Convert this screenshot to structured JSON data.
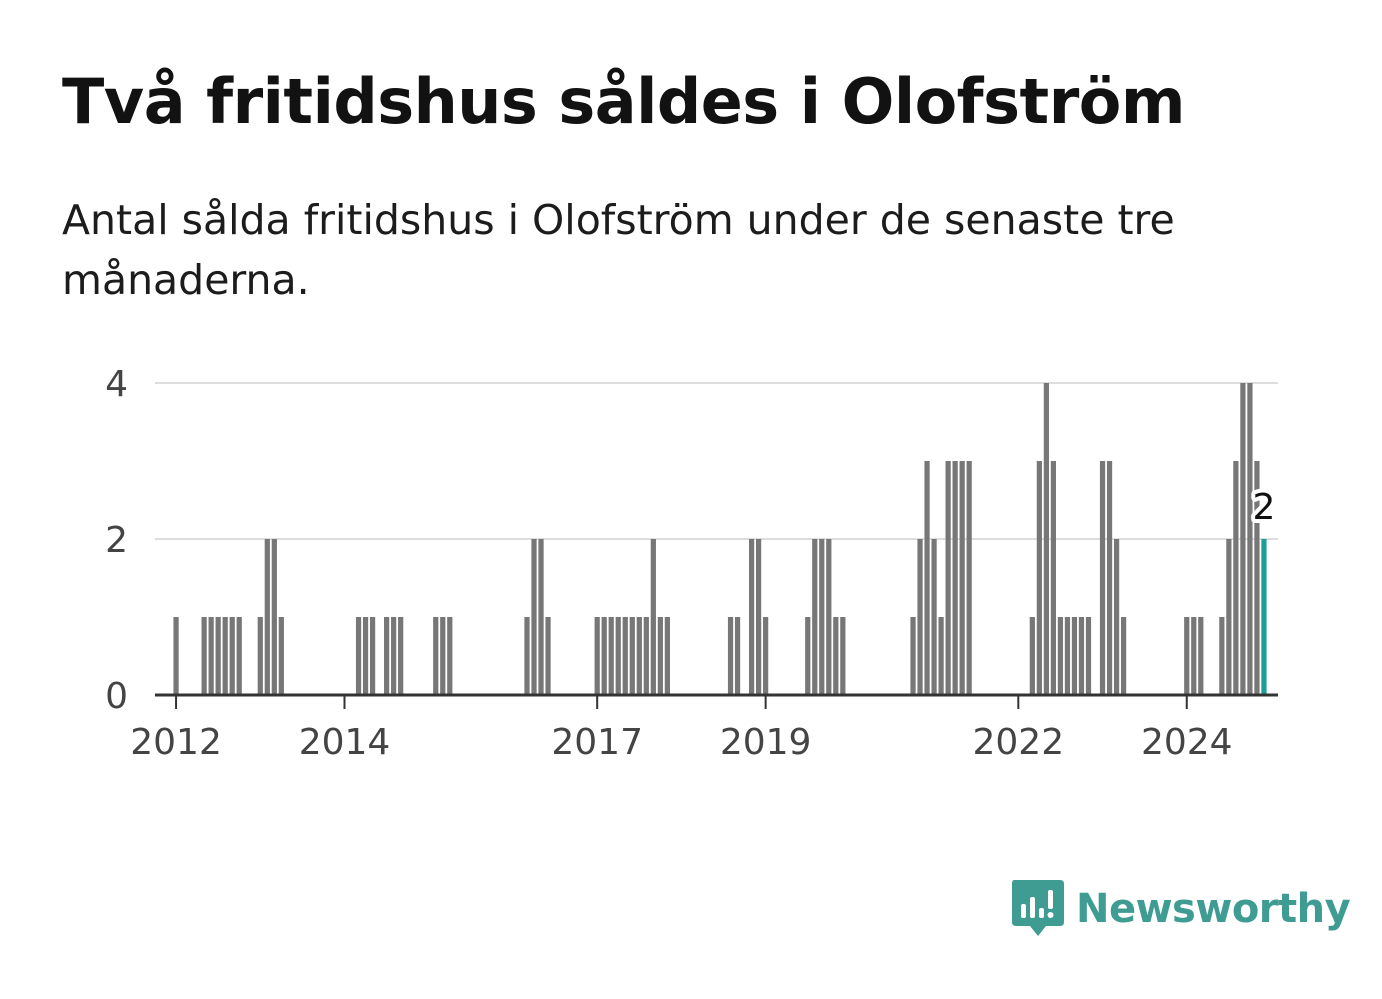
{
  "title": "Två fritidshus såldes i Olofström",
  "subtitle": "Antal sålda fritidshus i Olofström under de senaste tre månaderna.",
  "logo": {
    "text": "Newsworthy",
    "icon": "bar-chart-icon"
  },
  "colors": {
    "bar": "#777777",
    "highlight": "#1a9e97",
    "grid": "#dddddd",
    "axis": "#333333",
    "brand": "#3f9c93"
  },
  "chart_data": {
    "type": "bar",
    "title": "",
    "xlabel": "",
    "ylabel": "",
    "ylim": [
      0,
      4
    ],
    "yticks": [
      0,
      2,
      4
    ],
    "xticks": [
      "2012",
      "2014",
      "2017",
      "2019",
      "2022",
      "2024"
    ],
    "grid": true,
    "x_start": "2011-10",
    "x_end": "2025-02",
    "categories": [
      "2012-01",
      "2012-05",
      "2012-06",
      "2012-07",
      "2012-08",
      "2012-09",
      "2012-10",
      "2013-01",
      "2013-02",
      "2013-03",
      "2013-04",
      "2014-03",
      "2014-04",
      "2014-05",
      "2014-07",
      "2014-08",
      "2014-09",
      "2015-02",
      "2015-03",
      "2015-04",
      "2016-03",
      "2016-04",
      "2016-05",
      "2016-06",
      "2017-01",
      "2017-02",
      "2017-03",
      "2017-04",
      "2017-05",
      "2017-06",
      "2017-07",
      "2017-08",
      "2017-09",
      "2017-10",
      "2017-11",
      "2018-08",
      "2018-09",
      "2018-11",
      "2018-12",
      "2019-01",
      "2019-07",
      "2019-08",
      "2019-09",
      "2019-10",
      "2019-11",
      "2019-12",
      "2020-10",
      "2020-11",
      "2020-12",
      "2021-01",
      "2021-02",
      "2021-03",
      "2021-04",
      "2021-05",
      "2021-06",
      "2022-03",
      "2022-04",
      "2022-05",
      "2022-06",
      "2022-07",
      "2022-08",
      "2022-09",
      "2022-10",
      "2022-11",
      "2023-01",
      "2023-02",
      "2023-03",
      "2023-04",
      "2024-01",
      "2024-02",
      "2024-03",
      "2024-06",
      "2024-07",
      "2024-08",
      "2024-09",
      "2024-10",
      "2024-11",
      "2024-12"
    ],
    "values": [
      1,
      1,
      1,
      1,
      1,
      1,
      1,
      1,
      2,
      2,
      1,
      1,
      1,
      1,
      1,
      1,
      1,
      1,
      1,
      1,
      1,
      2,
      2,
      1,
      1,
      1,
      1,
      1,
      1,
      1,
      1,
      1,
      2,
      1,
      1,
      1,
      1,
      2,
      2,
      1,
      1,
      2,
      2,
      2,
      1,
      1,
      1,
      2,
      3,
      2,
      1,
      3,
      3,
      3,
      3,
      1,
      3,
      4,
      3,
      1,
      1,
      1,
      1,
      1,
      3,
      3,
      2,
      1,
      1,
      1,
      1,
      1,
      2,
      3,
      4,
      4,
      3,
      2
    ],
    "highlight_label": "2"
  }
}
